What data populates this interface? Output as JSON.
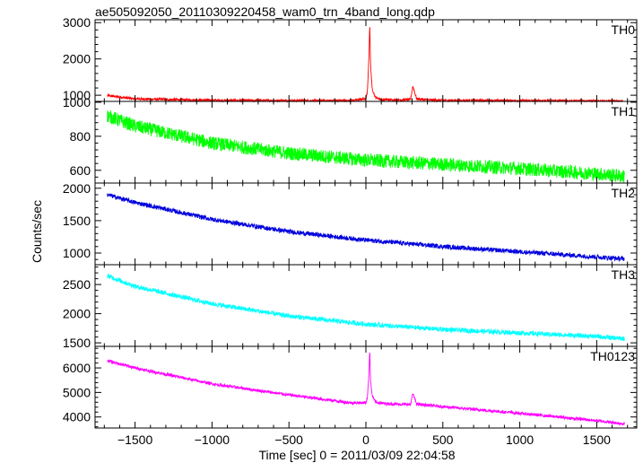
{
  "chart_data": {
    "type": "line",
    "title": "ae505092050_20110309220458_wam0_trn_4band_long.qdp",
    "xlabel": "Time [sec] 0 = 2011/03/09 22:04:58",
    "ylabel": "Counts/sec",
    "xlim": [
      -1760,
      1760
    ],
    "x_ticks": [
      -1500,
      -1000,
      -500,
      0,
      500,
      1000,
      1500
    ],
    "x_tick_labels": [
      "−1500",
      "−1000",
      "−500",
      "0",
      "500",
      "1000",
      "1500"
    ],
    "grid": false,
    "panels": [
      {
        "name": "TH0",
        "color": "#ff0000",
        "ylim": [
          830,
          3080
        ],
        "y_ticks": [
          1000,
          2000,
          3000
        ],
        "y_tick_labels": [
          "1000",
          "2000",
          "3000"
        ],
        "x": [
          -1680,
          -1500,
          -1000,
          -500,
          -100,
          0,
          10,
          20,
          25,
          30,
          40,
          60,
          100,
          200,
          290,
          305,
          330,
          400,
          500,
          1000,
          1500,
          1680
        ],
        "y": [
          990,
          900,
          860,
          850,
          850,
          900,
          1100,
          2100,
          3000,
          1900,
          1200,
          950,
          880,
          870,
          880,
          1250,
          900,
          870,
          860,
          850,
          840,
          830
        ],
        "noise": 35
      },
      {
        "name": "TH1",
        "color": "#00ff00",
        "ylim": [
          525,
          1005
        ],
        "y_ticks": [
          600,
          800,
          1000
        ],
        "y_tick_labels": [
          "600",
          "800",
          "1000"
        ],
        "x": [
          -1680,
          -1500,
          -1000,
          -500,
          0,
          500,
          1000,
          1500,
          1680
        ],
        "y": [
          920,
          860,
          760,
          700,
          660,
          635,
          610,
          580,
          565
        ],
        "noise": 40
      },
      {
        "name": "TH2",
        "color": "#0000dd",
        "ylim": [
          820,
          2080
        ],
        "y_ticks": [
          1000,
          1500,
          2000
        ],
        "y_tick_labels": [
          "1000",
          "1500",
          "2000"
        ],
        "x": [
          -1680,
          -1500,
          -1000,
          -500,
          0,
          500,
          1000,
          1500,
          1680
        ],
        "y": [
          1900,
          1780,
          1520,
          1330,
          1200,
          1100,
          1020,
          940,
          910
        ],
        "noise": 35
      },
      {
        "name": "TH3",
        "color": "#00ffff",
        "ylim": [
          1440,
          2840
        ],
        "y_ticks": [
          1500,
          2000,
          2500
        ],
        "y_tick_labels": [
          "1500",
          "2000",
          "2500"
        ],
        "x": [
          -1680,
          -1500,
          -1000,
          -500,
          0,
          500,
          1000,
          1500,
          1680
        ],
        "y": [
          2650,
          2470,
          2170,
          1960,
          1820,
          1730,
          1670,
          1610,
          1570
        ],
        "noise": 40
      },
      {
        "name": "TH0123",
        "color": "#ff00ff",
        "ylim": [
          3550,
          6880
        ],
        "y_ticks": [
          4000,
          5000,
          6000
        ],
        "y_tick_labels": [
          "4000",
          "5000",
          "6000"
        ],
        "x": [
          -1680,
          -1500,
          -1000,
          -500,
          -100,
          0,
          10,
          20,
          25,
          30,
          40,
          60,
          100,
          200,
          290,
          305,
          330,
          400,
          500,
          1000,
          1500,
          1680
        ],
        "y": [
          6300,
          6000,
          5350,
          4900,
          4580,
          4580,
          4800,
          5800,
          6800,
          5500,
          4900,
          4620,
          4560,
          4520,
          4510,
          4950,
          4530,
          4480,
          4420,
          4150,
          3850,
          3720
        ],
        "noise": 60
      }
    ]
  }
}
